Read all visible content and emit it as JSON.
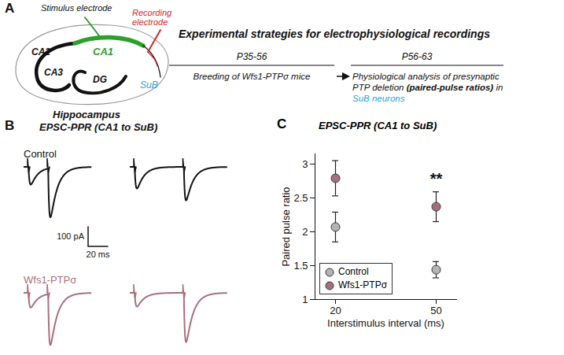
{
  "figure": {
    "A": {
      "letter": "A",
      "diagram": {
        "stimulus": "Stimulus electrode",
        "recording": [
          "Recording",
          "electrode"
        ],
        "CA1": "CA1",
        "CA2": "CA2",
        "CA3": "CA3",
        "DG": "DG",
        "SuB": "SuB",
        "caption": "Hippocampus"
      },
      "timeline": {
        "title": "Experimental strategies for electrophysiological recordings",
        "steps": [
          {
            "period": "P35-56",
            "lines": [
              "Breeding of Wfs1-PTPσ mice"
            ]
          },
          {
            "period": "P56-63",
            "lines": [
              "Physiological analysis of presynaptic",
              "PTP deletion (paired-pulse ratios) in",
              "SuB neurons"
            ],
            "emphasis": "(paired-pulse ratios)",
            "highlight": "SuB neurons"
          }
        ]
      }
    },
    "B": {
      "letter": "B",
      "title": "EPSC-PPR (CA1 to SuB)",
      "scale_bar": {
        "amplitude": {
          "value": 100,
          "label": "100 pA"
        },
        "time": {
          "value": 20,
          "label": "20 ms"
        }
      },
      "traces": [
        {
          "name": "Control",
          "color": "#111111",
          "sweeps": [
            {
              "interval_ms": 20,
              "amplitudes_pA": [
                90,
                250
              ]
            },
            {
              "interval_ms": 50,
              "amplitudes_pA": [
                110,
                170
              ]
            }
          ]
        },
        {
          "name": "Wfs1-PTPσ",
          "color": "#a5707c",
          "sweeps": [
            {
              "interval_ms": 20,
              "amplitudes_pA": [
                75,
                260
              ]
            },
            {
              "interval_ms": 50,
              "amplitudes_pA": [
                70,
                250
              ]
            }
          ]
        }
      ]
    }
  },
  "chart_data": {
    "type": "scatter",
    "panel_letter": "C",
    "title": "EPSC-PPR (CA1 to SuB)",
    "x_label": "Interstimulus interval (ms)",
    "y_label": "Paired pulse ratio",
    "categories": [
      "20",
      "50"
    ],
    "series": [
      {
        "name": "Control",
        "color": "#b4b4b4",
        "values": [
          2.07,
          1.44
        ],
        "errors": [
          0.22,
          0.12
        ]
      },
      {
        "name": "Wfs1-PTPσ",
        "color": "#a5707c",
        "values": [
          2.79,
          2.37
        ],
        "errors": [
          0.26,
          0.22
        ]
      }
    ],
    "ylim": [
      1,
      3.15
    ],
    "yticks": [
      1,
      1.5,
      2,
      2.5,
      3
    ],
    "marker": "circle",
    "legend": "lower left",
    "annotations": [
      {
        "category": "50",
        "text": "**"
      }
    ]
  }
}
